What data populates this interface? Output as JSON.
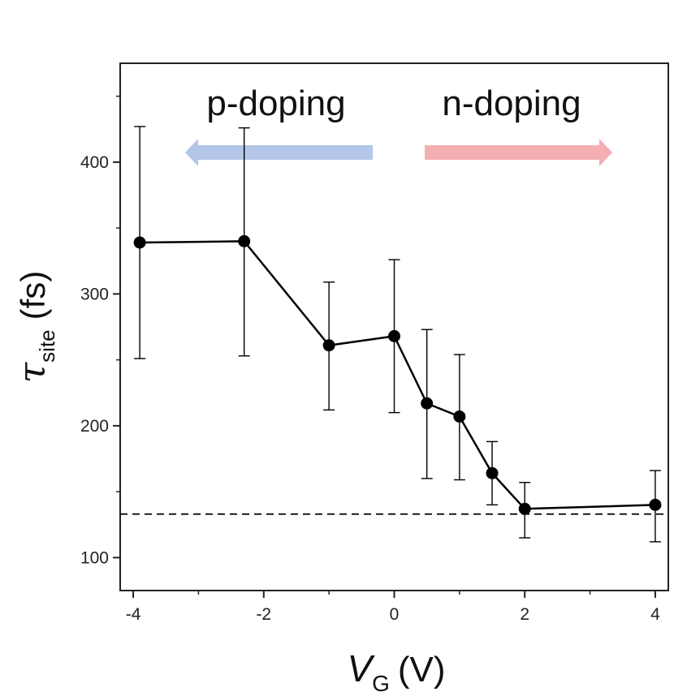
{
  "chart_data": {
    "type": "scatter",
    "xlabel": {
      "symbol": "V",
      "subscript": "G",
      "unit": "(V)"
    },
    "ylabel": {
      "symbol": "τ",
      "subscript": "site",
      "unit": "(fs)"
    },
    "xlim": [
      -4.2,
      4.2
    ],
    "ylim": [
      75,
      475
    ],
    "xticks": [
      -4,
      -2,
      0,
      2,
      4
    ],
    "xticks_minor": [
      -3,
      -1,
      1,
      3
    ],
    "yticks": [
      100,
      200,
      300,
      400
    ],
    "yticks_minor": [
      150,
      250,
      350,
      450
    ],
    "grid": false,
    "series": [
      {
        "x": [
          -3.9,
          -2.3,
          -1.0,
          0.0,
          0.5,
          1.0,
          1.5,
          2.0,
          4.0
        ],
        "y": [
          339,
          340,
          261,
          268,
          217,
          207,
          164,
          137,
          140
        ],
        "err_low": [
          251,
          253,
          212,
          210,
          160,
          159,
          140,
          115,
          112
        ],
        "err_high": [
          427,
          426,
          309,
          326,
          273,
          254,
          188,
          157,
          166
        ],
        "color": "#000000"
      }
    ],
    "reference_line": {
      "y": 133,
      "style": "dashed"
    },
    "annotations": [
      {
        "text": "p-doping",
        "arrow_direction": "left",
        "arrow_color": "#b4c6e7"
      },
      {
        "text": "n-doping",
        "arrow_direction": "right",
        "arrow_color": "#f5aeb2"
      }
    ]
  }
}
